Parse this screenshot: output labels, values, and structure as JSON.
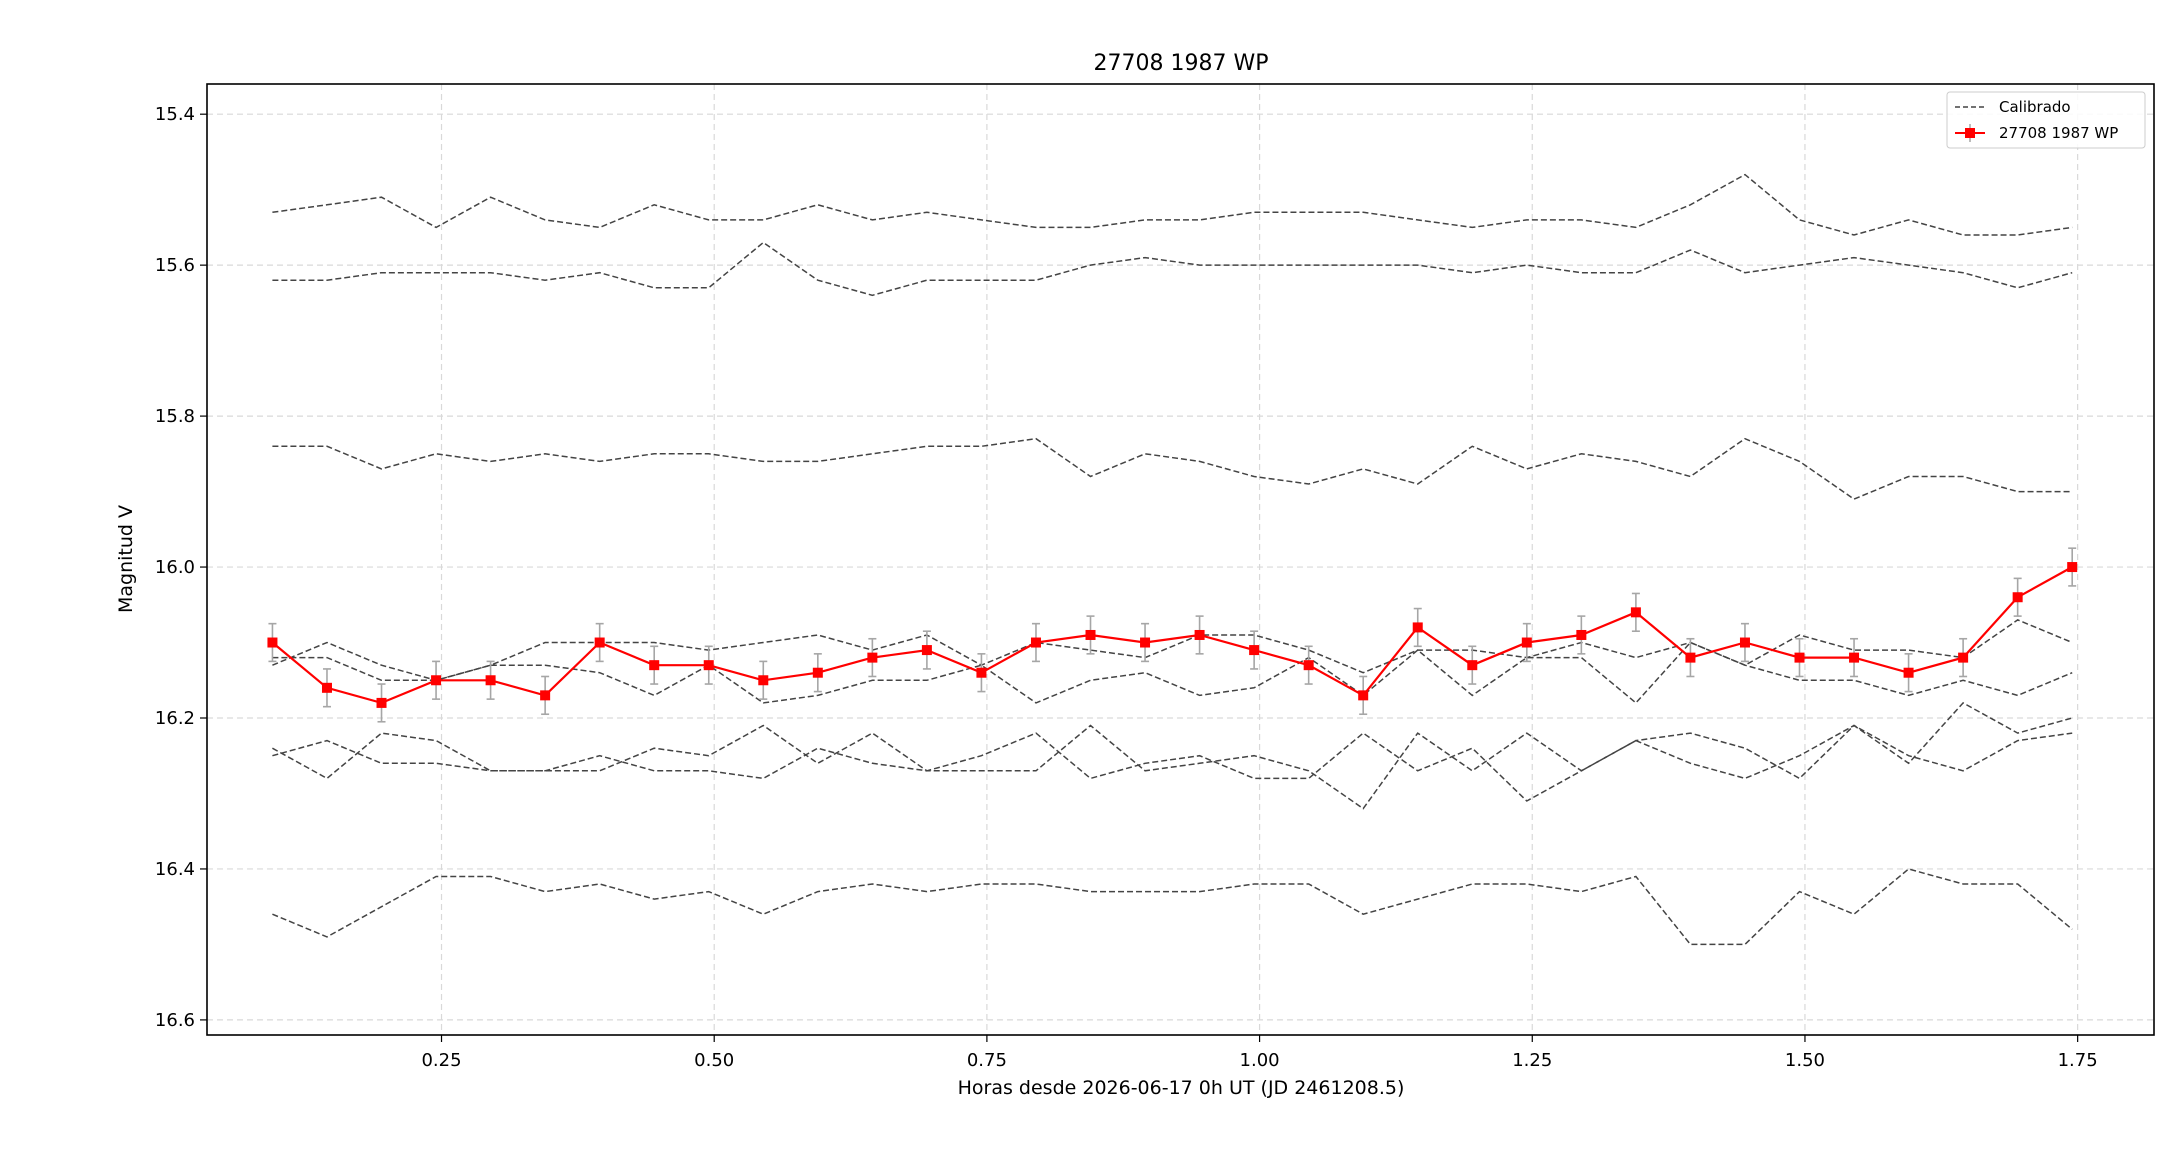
{
  "chart_data": {
    "type": "line",
    "title": "27708 1987 WP",
    "xlabel": "Horas desde 2026-06-17 0h UT (JD 2461208.5)",
    "ylabel": "Magnitud V",
    "xlim": [
      0.035,
      1.82
    ],
    "ylim": [
      16.62,
      15.36
    ],
    "y_inverted": true,
    "grid": true,
    "legend_position": "top-right",
    "xticks": [
      0.25,
      0.5,
      0.75,
      1.0,
      1.25,
      1.5,
      1.75
    ],
    "xtick_labels": [
      "0.25",
      "0.50",
      "0.75",
      "1.00",
      "1.25",
      "1.50",
      "1.75"
    ],
    "yticks": [
      15.4,
      15.6,
      15.8,
      16.0,
      16.2,
      16.4,
      16.6
    ],
    "ytick_labels": [
      "15.4",
      "15.6",
      "15.8",
      "16.0",
      "16.2",
      "16.4",
      "16.6"
    ],
    "x": [
      0.095,
      0.145,
      0.195,
      0.245,
      0.295,
      0.345,
      0.395,
      0.445,
      0.495,
      0.545,
      0.595,
      0.645,
      0.695,
      0.745,
      0.795,
      0.845,
      0.895,
      0.945,
      0.995,
      1.045,
      1.095,
      1.145,
      1.195,
      1.245,
      1.295,
      1.345,
      1.395,
      1.445,
      1.495,
      1.545,
      1.595,
      1.645,
      1.695,
      1.745
    ],
    "comparison_series": [
      {
        "values": [
          15.53,
          15.52,
          15.51,
          15.55,
          15.51,
          15.54,
          15.55,
          15.52,
          15.54,
          15.54,
          15.52,
          15.54,
          15.53,
          15.54,
          15.55,
          15.55,
          15.54,
          15.54,
          15.53,
          15.53,
          15.53,
          15.54,
          15.55,
          15.54,
          15.54,
          15.55,
          15.52,
          15.48,
          15.54,
          15.56,
          15.54,
          15.56,
          15.56,
          15.55
        ]
      },
      {
        "values": [
          15.62,
          15.62,
          15.61,
          15.61,
          15.61,
          15.62,
          15.61,
          15.63,
          15.63,
          15.57,
          15.62,
          15.64,
          15.62,
          15.62,
          15.62,
          15.6,
          15.59,
          15.6,
          15.6,
          15.6,
          15.6,
          15.6,
          15.61,
          15.6,
          15.61,
          15.61,
          15.58,
          15.61,
          15.6,
          15.59,
          15.6,
          15.61,
          15.63,
          15.61
        ]
      },
      {
        "values": [
          15.84,
          15.84,
          15.87,
          15.85,
          15.86,
          15.85,
          15.86,
          15.85,
          15.85,
          15.86,
          15.86,
          15.85,
          15.84,
          15.84,
          15.83,
          15.88,
          15.85,
          15.86,
          15.88,
          15.89,
          15.87,
          15.89,
          15.84,
          15.87,
          15.85,
          15.86,
          15.88,
          15.83,
          15.86,
          15.91,
          15.88,
          15.88,
          15.9,
          15.9
        ]
      },
      {
        "values": [
          16.13,
          16.1,
          16.13,
          16.15,
          16.13,
          16.1,
          16.1,
          16.1,
          16.11,
          16.1,
          16.09,
          16.11,
          16.09,
          16.13,
          16.1,
          16.11,
          16.12,
          16.09,
          16.09,
          16.11,
          16.14,
          16.11,
          16.11,
          16.12,
          16.1,
          16.12,
          16.1,
          16.13,
          16.09,
          16.11,
          16.11,
          16.12,
          16.07,
          16.1
        ]
      },
      {
        "values": [
          16.12,
          16.12,
          16.15,
          16.15,
          16.13,
          16.13,
          16.14,
          16.17,
          16.13,
          16.18,
          16.17,
          16.15,
          16.15,
          16.13,
          16.18,
          16.15,
          16.14,
          16.17,
          16.16,
          16.12,
          16.17,
          16.11,
          16.17,
          16.12,
          16.12,
          16.18,
          16.1,
          16.13,
          16.15,
          16.15,
          16.17,
          16.15,
          16.17,
          16.14
        ]
      },
      {
        "values": [
          16.24,
          16.28,
          16.22,
          16.23,
          16.27,
          16.27,
          16.27,
          16.24,
          16.25,
          16.21,
          16.26,
          16.22,
          16.27,
          16.27,
          16.27,
          16.21,
          16.27,
          16.26,
          16.25,
          16.27,
          16.32,
          16.22,
          16.27,
          16.22,
          16.27,
          16.23,
          16.22,
          16.24,
          16.28,
          16.21,
          16.26,
          16.18,
          16.22,
          16.2
        ]
      },
      {
        "values": [
          16.25,
          16.23,
          16.26,
          16.26,
          16.27,
          16.27,
          16.25,
          16.27,
          16.27,
          16.28,
          16.24,
          16.26,
          16.27,
          16.25,
          16.22,
          16.28,
          16.26,
          16.25,
          16.28,
          16.28,
          16.22,
          16.27,
          16.24,
          16.31,
          16.27,
          16.23,
          16.26,
          16.28,
          16.25,
          16.21,
          16.25,
          16.27,
          16.23,
          16.22
        ]
      },
      {
        "values": [
          16.46,
          16.49,
          16.45,
          16.41,
          16.41,
          16.43,
          16.42,
          16.44,
          16.43,
          16.46,
          16.43,
          16.42,
          16.43,
          16.42,
          16.42,
          16.43,
          16.43,
          16.43,
          16.42,
          16.42,
          16.46,
          16.44,
          16.42,
          16.42,
          16.43,
          16.41,
          16.5,
          16.5,
          16.43,
          16.46,
          16.4,
          16.42,
          16.42,
          16.48
        ]
      }
    ],
    "target_series": {
      "name": "27708 1987 WP",
      "values": [
        16.1,
        16.16,
        16.18,
        16.15,
        16.15,
        16.17,
        16.1,
        16.13,
        16.13,
        16.15,
        16.14,
        16.12,
        16.11,
        16.14,
        16.1,
        16.09,
        16.1,
        16.09,
        16.11,
        16.13,
        16.17,
        16.08,
        16.13,
        16.1,
        16.09,
        16.06,
        16.12,
        16.1,
        16.12,
        16.12,
        16.14,
        16.12,
        16.04,
        16.0
      ],
      "errors": [
        0.025,
        0.025,
        0.025,
        0.025,
        0.025,
        0.025,
        0.025,
        0.025,
        0.025,
        0.025,
        0.025,
        0.025,
        0.025,
        0.025,
        0.025,
        0.025,
        0.025,
        0.025,
        0.025,
        0.025,
        0.025,
        0.025,
        0.025,
        0.025,
        0.025,
        0.025,
        0.025,
        0.025,
        0.025,
        0.025,
        0.025,
        0.025,
        0.025,
        0.025
      ]
    },
    "legend": [
      "Calibrado",
      "27708 1987 WP"
    ],
    "colors": {
      "target": "#ff0000",
      "comparison": "#444444",
      "errorbar": "#a6a6a6",
      "grid": "#d9d9d9"
    }
  }
}
